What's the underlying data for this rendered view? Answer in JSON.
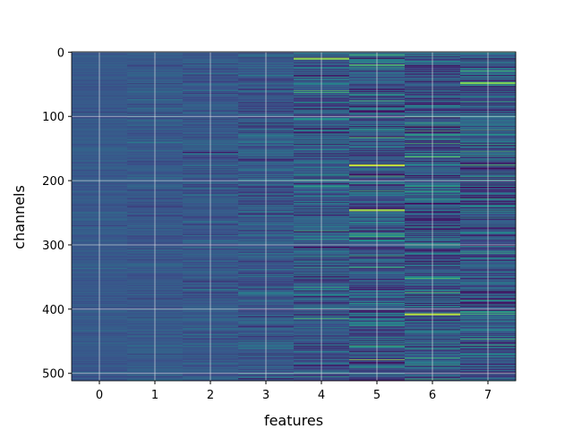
{
  "chart_data": {
    "type": "heatmap",
    "title": "",
    "xlabel": "features",
    "ylabel": "channels",
    "columns": [
      0,
      1,
      2,
      3,
      4,
      5,
      6,
      7
    ],
    "x_ticks": [
      "0",
      "1",
      "2",
      "3",
      "4",
      "5",
      "6",
      "7"
    ],
    "y_ticks": [
      0,
      100,
      200,
      300,
      400,
      500
    ],
    "rows": 512,
    "xlim": [
      -0.5,
      7.5
    ],
    "ylim": [
      511.5,
      -0.5
    ],
    "y_inverted": true,
    "grid": true,
    "colormap": "viridis",
    "column_variability": [
      0.035,
      0.05,
      0.07,
      0.1,
      0.14,
      0.17,
      0.18,
      0.17
    ],
    "highlights": [
      {
        "column": 4,
        "row": 10,
        "level": 0.82
      },
      {
        "column": 5,
        "row": 176,
        "level": 0.9
      },
      {
        "column": 5,
        "row": 246,
        "level": 0.85
      },
      {
        "column": 6,
        "row": 408,
        "level": 0.88
      },
      {
        "column": 7,
        "row": 48,
        "level": 0.8
      }
    ],
    "colors": {
      "low": "#3b1a65",
      "base": "#3b5a8f",
      "high": "#a8db34",
      "grid": "#e8e8e8",
      "axis": "#000000"
    }
  }
}
